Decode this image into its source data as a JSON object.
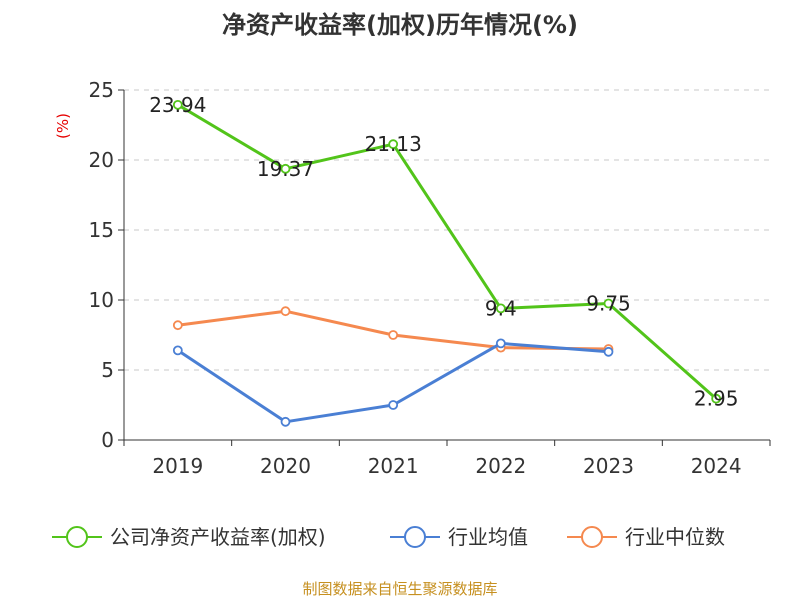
{
  "chart_data": {
    "type": "line",
    "title": "净资产收益率(加权)历年情况(%)",
    "ylabel": "(%)",
    "xlabel": "",
    "categories": [
      "2019",
      "2020",
      "2021",
      "2022",
      "2023",
      "2024"
    ],
    "ylim": [
      0,
      25
    ],
    "yticks": [
      0,
      5,
      10,
      15,
      20,
      25
    ],
    "grid": true,
    "legend_position": "bottom",
    "series": [
      {
        "name": "公司净资产收益率(加权)",
        "color": "#52c41a",
        "values": [
          23.94,
          19.37,
          21.13,
          9.4,
          9.75,
          2.95
        ],
        "labels": [
          "23.94",
          "19.37",
          "21.13",
          "9.4",
          "9.75",
          "2.95"
        ]
      },
      {
        "name": "行业均值",
        "color": "#4a7fd4",
        "values": [
          6.4,
          1.3,
          2.5,
          6.9,
          6.3,
          null
        ]
      },
      {
        "name": "行业中位数",
        "color": "#f5894f",
        "values": [
          8.2,
          9.2,
          7.5,
          6.6,
          6.5,
          null
        ]
      }
    ],
    "source": "制图数据来自恒生聚源数据库"
  }
}
